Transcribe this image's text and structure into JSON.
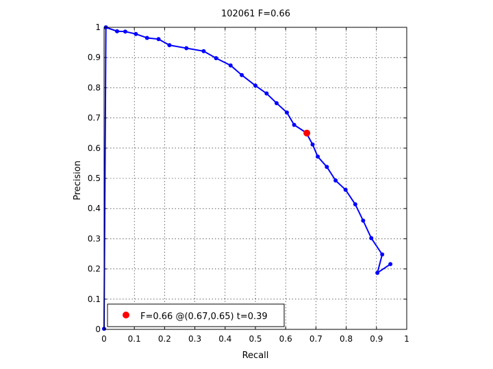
{
  "chart_data": {
    "type": "line",
    "title": "102061 F=0.66",
    "xlabel": "Recall",
    "ylabel": "Precision",
    "xlim": [
      0,
      1
    ],
    "ylim": [
      0,
      1
    ],
    "grid": true,
    "x_ticks": [
      "0",
      "0.1",
      "0.2",
      "0.3",
      "0.4",
      "0.5",
      "0.6",
      "0.7",
      "0.8",
      "0.9",
      "1"
    ],
    "y_ticks": [
      "0",
      "0.1",
      "0.2",
      "0.3",
      "0.4",
      "0.5",
      "0.6",
      "0.7",
      "0.8",
      "0.9",
      "1"
    ],
    "series": [
      {
        "color": "#0000ff",
        "points": [
          [
            0.946,
            0.216
          ],
          [
            0.903,
            0.187
          ],
          [
            0.919,
            0.248
          ],
          [
            0.883,
            0.302
          ],
          [
            0.856,
            0.36
          ],
          [
            0.83,
            0.414
          ],
          [
            0.798,
            0.462
          ],
          [
            0.765,
            0.493
          ],
          [
            0.736,
            0.538
          ],
          [
            0.706,
            0.572
          ],
          [
            0.689,
            0.612
          ],
          [
            0.668,
            0.651
          ],
          [
            0.628,
            0.677
          ],
          [
            0.604,
            0.718
          ],
          [
            0.57,
            0.749
          ],
          [
            0.537,
            0.781
          ],
          [
            0.5,
            0.807
          ],
          [
            0.455,
            0.842
          ],
          [
            0.418,
            0.874
          ],
          [
            0.37,
            0.898
          ],
          [
            0.329,
            0.921
          ],
          [
            0.272,
            0.931
          ],
          [
            0.216,
            0.941
          ],
          [
            0.18,
            0.961
          ],
          [
            0.142,
            0.965
          ],
          [
            0.105,
            0.978
          ],
          [
            0.07,
            0.986
          ],
          [
            0.043,
            0.987
          ],
          [
            0.006,
            1.0
          ],
          [
            0.0,
            0.002
          ]
        ]
      }
    ],
    "best_point": {
      "recall": 0.67,
      "precision": 0.65,
      "color": "#ff0000"
    },
    "legend": {
      "text": "F=0.66 @(0.67,0.65) t=0.39",
      "position": "bottom-left"
    }
  }
}
